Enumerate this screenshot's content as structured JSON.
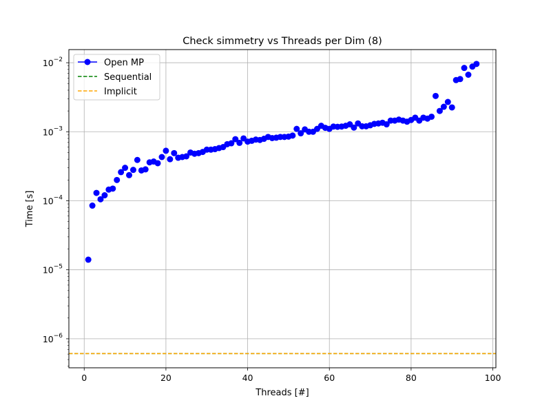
{
  "chart_data": {
    "type": "scatter",
    "title": "Check simmetry vs Threads per Dim (8)",
    "xlabel": "Threads [#]",
    "ylabel": "Time [s]",
    "xscale": "linear",
    "yscale": "log",
    "xlim": [
      -3.75,
      100.75
    ],
    "ylim": [
      3.8e-07,
      0.0155
    ],
    "xticks": [
      0,
      20,
      40,
      60,
      80,
      100
    ],
    "xtick_labels": [
      "0",
      "20",
      "40",
      "60",
      "80",
      "100"
    ],
    "yticks": [
      1e-06,
      1e-05,
      0.0001,
      0.001,
      0.01
    ],
    "ytick_labels": [
      {
        "base": "10",
        "exp": "−6"
      },
      {
        "base": "10",
        "exp": "−5"
      },
      {
        "base": "10",
        "exp": "−4"
      },
      {
        "base": "10",
        "exp": "−3"
      },
      {
        "base": "10",
        "exp": "−2"
      }
    ],
    "grid": true,
    "legend_position": "top-left",
    "series": [
      {
        "name": "Open MP",
        "style": "line-marker",
        "color": "#0000ff",
        "x": [
          1,
          2,
          3,
          4,
          5,
          6,
          7,
          8,
          9,
          10,
          11,
          12,
          13,
          14,
          15,
          16,
          17,
          18,
          19,
          20,
          21,
          22,
          23,
          24,
          25,
          26,
          27,
          28,
          29,
          30,
          31,
          32,
          33,
          34,
          35,
          36,
          37,
          38,
          39,
          40,
          41,
          42,
          43,
          44,
          45,
          46,
          47,
          48,
          49,
          50,
          51,
          52,
          53,
          54,
          55,
          56,
          57,
          58,
          59,
          60,
          61,
          62,
          63,
          64,
          65,
          66,
          67,
          68,
          69,
          70,
          71,
          72,
          73,
          74,
          75,
          76,
          77,
          78,
          79,
          80,
          81,
          82,
          83,
          84,
          85,
          86,
          87,
          88,
          89,
          90,
          91,
          92,
          93,
          94,
          95,
          96
        ],
        "y": [
          1.4e-05,
          8.5e-05,
          0.00013,
          0.000105,
          0.00012,
          0.000145,
          0.00015,
          0.0002,
          0.00026,
          0.0003,
          0.000235,
          0.00028,
          0.00039,
          0.000275,
          0.000285,
          0.00036,
          0.00037,
          0.00035,
          0.00043,
          0.00053,
          0.0004,
          0.00049,
          0.00042,
          0.00043,
          0.00044,
          0.0005,
          0.00048,
          0.00049,
          0.00051,
          0.00055,
          0.00055,
          0.00056,
          0.00058,
          0.0006,
          0.00066,
          0.00068,
          0.00078,
          0.00069,
          0.0008,
          0.00072,
          0.00074,
          0.00077,
          0.00076,
          0.00079,
          0.00084,
          0.00081,
          0.00082,
          0.00084,
          0.00084,
          0.00085,
          0.00088,
          0.0011,
          0.00095,
          0.00108,
          0.001,
          0.001,
          0.0011,
          0.00122,
          0.00114,
          0.0011,
          0.00119,
          0.00118,
          0.00119,
          0.00122,
          0.00128,
          0.00115,
          0.00132,
          0.0012,
          0.0012,
          0.00124,
          0.0013,
          0.00132,
          0.00135,
          0.00128,
          0.00145,
          0.00145,
          0.0015,
          0.00145,
          0.0014,
          0.00148,
          0.0016,
          0.00145,
          0.0016,
          0.00155,
          0.00165,
          0.0033,
          0.002,
          0.0023,
          0.0027,
          0.00225,
          0.0056,
          0.0058,
          0.0084,
          0.0067,
          0.0088,
          0.0096
        ]
      },
      {
        "name": "Sequential",
        "style": "dashed-hline",
        "color": "#008000",
        "y": 6.1e-07
      },
      {
        "name": "Implicit",
        "style": "dashed-hline",
        "color": "#ffa500",
        "y": 6.1e-07
      }
    ]
  }
}
